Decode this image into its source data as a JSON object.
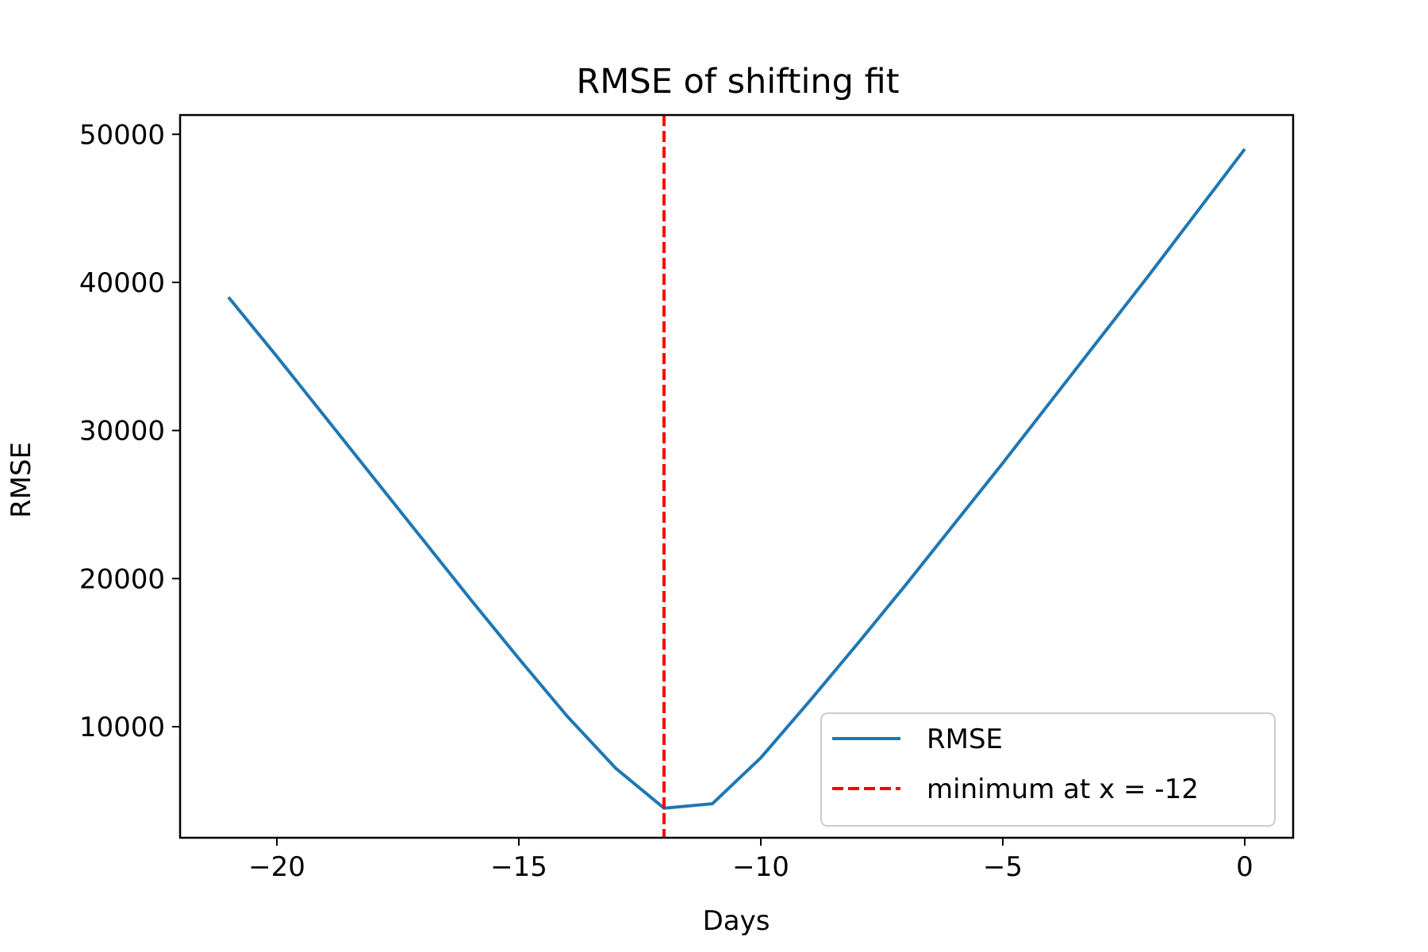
{
  "chart_data": {
    "type": "line",
    "title": "RMSE of shifting fit",
    "xlabel": "Days",
    "ylabel": "RMSE",
    "xlim": [
      -22,
      1
    ],
    "ylim": [
      2500,
      51300
    ],
    "xticks": [
      -20,
      -15,
      -10,
      -5,
      0
    ],
    "xtick_labels": [
      "−20",
      "−15",
      "−10",
      "−5",
      "0"
    ],
    "yticks": [
      10000,
      20000,
      30000,
      40000,
      50000
    ],
    "ytick_labels": [
      "10000",
      "20000",
      "30000",
      "40000",
      "50000"
    ],
    "grid": false,
    "legend_position": "lower-right",
    "series": [
      {
        "name": "RMSE",
        "color": "#1f77b4",
        "style": "solid",
        "x": [
          -21,
          -20,
          -19,
          -18,
          -17,
          -16,
          -15,
          -14,
          -13,
          -12,
          -11,
          -10,
          -9,
          -8,
          -7,
          -6,
          -5,
          -4,
          -3,
          -2,
          -1,
          0
        ],
        "y": [
          39000,
          35000,
          30900,
          26800,
          22700,
          18600,
          14600,
          10700,
          7200,
          4500,
          4800,
          7900,
          11700,
          15600,
          19600,
          23700,
          27800,
          32000,
          36200,
          40400,
          44700,
          49000
        ]
      }
    ],
    "vlines": [
      {
        "name": "minimum at x = -12",
        "x": -12,
        "color": "#ff0000",
        "style": "dashed"
      }
    ]
  }
}
